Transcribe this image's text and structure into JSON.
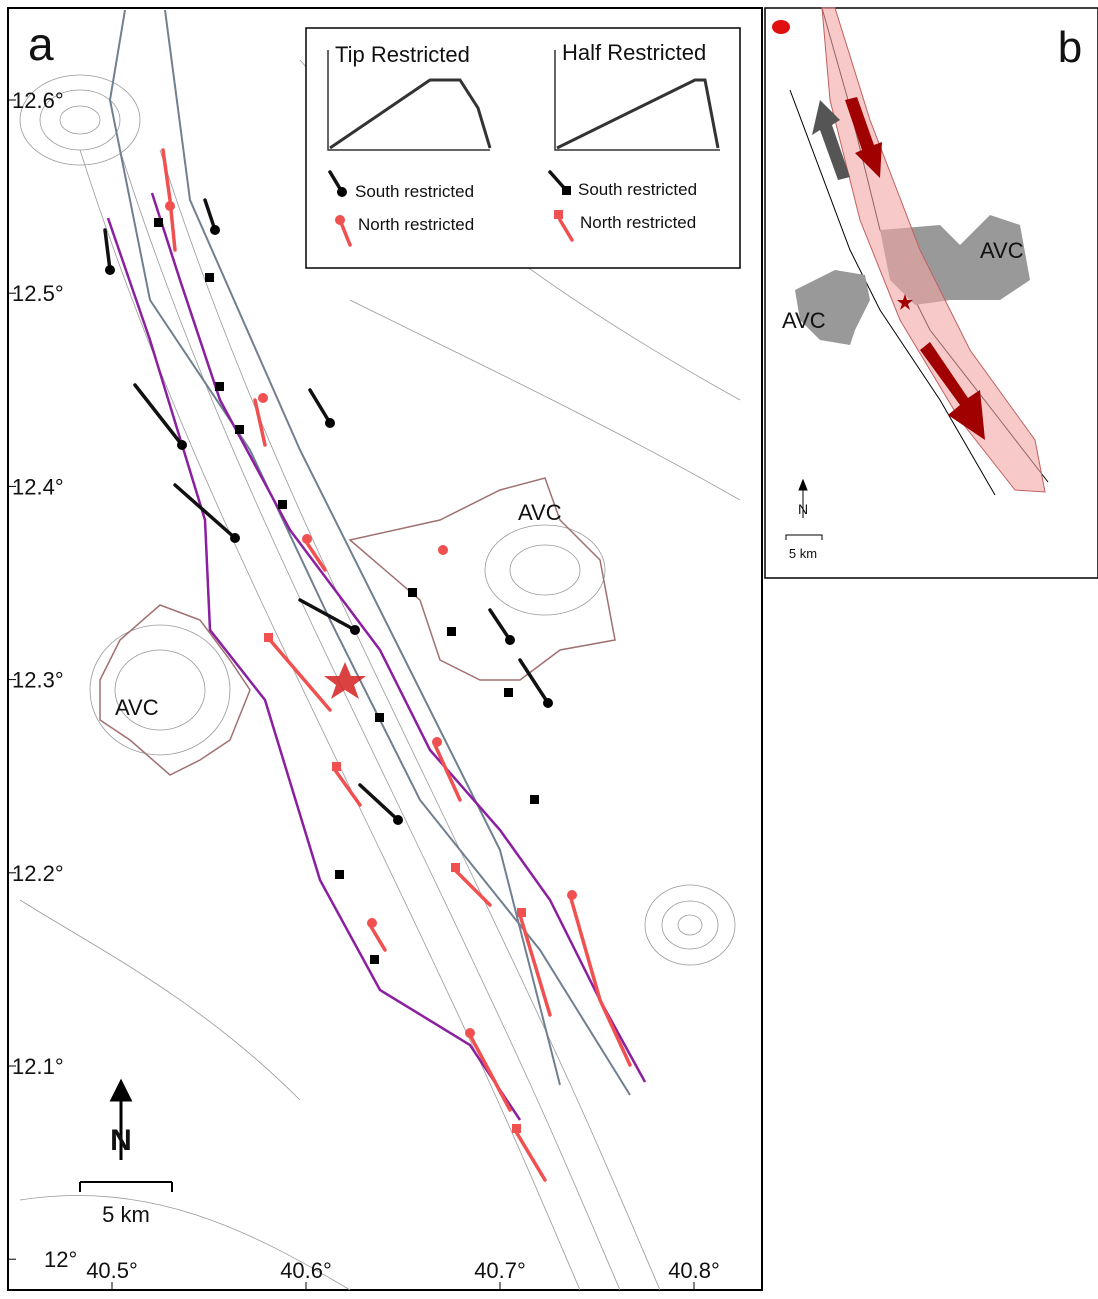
{
  "panel_a": {
    "label": "a",
    "lat_labels": [
      "12.6°",
      "12.5°",
      "12.4°",
      "12.3°",
      "12.2°",
      "12.1°",
      "12°"
    ],
    "lon_labels": [
      "40.5°",
      "40.6°",
      "40.7°",
      "40.8°"
    ],
    "legend": {
      "tip_title": "Tip Restricted",
      "half_title": "Half Restricted",
      "tip_south": "South restricted",
      "tip_north": "North restricted",
      "half_south": "South restricted",
      "half_north": "North restricted"
    },
    "avc_labels": [
      "AVC",
      "AVC"
    ],
    "north": "N",
    "scale": "5 km"
  },
  "panel_b": {
    "label": "b",
    "avc_labels": [
      "AVC",
      "AVC"
    ],
    "north": "N",
    "scale": "5 km"
  }
}
